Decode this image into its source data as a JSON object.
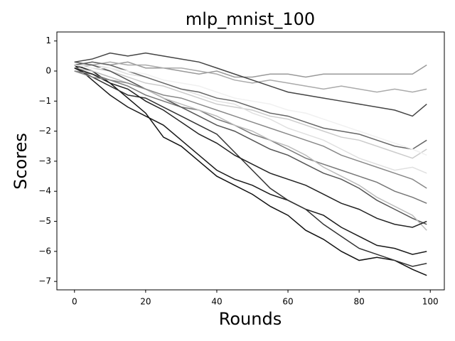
{
  "chart_data": {
    "type": "line",
    "title": "mlp_mnist_100",
    "xlabel": "Rounds",
    "ylabel": "Scores",
    "x": [
      0,
      5,
      10,
      15,
      20,
      25,
      30,
      35,
      40,
      45,
      50,
      55,
      60,
      65,
      70,
      75,
      80,
      85,
      90,
      95,
      99
    ],
    "xlim": [
      -4.95,
      103.95
    ],
    "xticks": [
      0,
      20,
      40,
      60,
      80,
      100
    ],
    "ylim": [
      -7.28,
      1.3
    ],
    "yticks": [
      {
        "value": -7,
        "label": "−7"
      },
      {
        "value": -6,
        "label": "−6"
      },
      {
        "value": -5,
        "label": "−5"
      },
      {
        "value": -4,
        "label": "−4"
      },
      {
        "value": -3,
        "label": "−3"
      },
      {
        "value": -2,
        "label": "−2"
      },
      {
        "value": -1,
        "label": "−1"
      },
      0,
      1
    ],
    "series": [
      {
        "color": "#999999",
        "values": [
          0.2,
          0.3,
          0.2,
          0.3,
          0.1,
          0.1,
          0,
          -0.1,
          0,
          -0.2,
          -0.2,
          -0.1,
          -0.1,
          -0.2,
          -0.1,
          -0.1,
          -0.1,
          -0.1,
          -0.1,
          -0.1,
          0.2
        ]
      },
      {
        "color": "#aaaaaa",
        "values": [
          0.1,
          0.2,
          0.3,
          0.2,
          0.2,
          0.1,
          0.1,
          0,
          -0.1,
          -0.3,
          -0.4,
          -0.3,
          -0.4,
          -0.5,
          -0.6,
          -0.5,
          -0.6,
          -0.7,
          -0.6,
          -0.7,
          -0.6
        ]
      },
      {
        "color": "#444444",
        "values": [
          0.3,
          0.4,
          0.6,
          0.5,
          0.6,
          0.5,
          0.4,
          0.3,
          0.1,
          -0.1,
          -0.3,
          -0.5,
          -0.7,
          -0.8,
          -0.9,
          -1,
          -1.1,
          -1.2,
          -1.3,
          -1.5,
          -1.1
        ]
      },
      {
        "color": "#1a1a1a",
        "values": [
          0.2,
          -0.3,
          -0.8,
          -1.2,
          -1.5,
          -1.8,
          -2.3,
          -2.8,
          -3.3,
          -3.6,
          -3.8,
          -4.1,
          -4.3,
          -4.6,
          -4.8,
          -5.2,
          -5.5,
          -5.8,
          -5.9,
          -6.1,
          -6.0
        ]
      },
      {
        "color": "#111111",
        "values": [
          0.2,
          0,
          -0.4,
          -0.9,
          -1.4,
          -2.2,
          -2.5,
          -3,
          -3.5,
          -3.8,
          -4.1,
          -4.5,
          -4.8,
          -5.3,
          -5.6,
          -6.0,
          -6.3,
          -6.2,
          -6.3,
          -6.6,
          -6.8
        ]
      },
      {
        "color": "#333333",
        "values": [
          0.1,
          -0.2,
          -0.5,
          -0.8,
          -0.9,
          -1.2,
          -1.5,
          -1.8,
          -2.1,
          -2.7,
          -3.3,
          -3.9,
          -4.3,
          -4.6,
          -5.1,
          -5.5,
          -5.9,
          -6.1,
          -6.3,
          -6.5,
          -6.4
        ]
      },
      {
        "color": "#cccccc",
        "values": [
          0.2,
          0.1,
          0,
          -0.2,
          -0.4,
          -0.5,
          -0.7,
          -0.9,
          -1.1,
          -1.2,
          -1.3,
          -1.5,
          -1.6,
          -1.8,
          -2.0,
          -2.2,
          -2.3,
          -2.5,
          -2.7,
          -2.9,
          -2.6
        ]
      },
      {
        "color": "#777777",
        "values": [
          0.0,
          -0.1,
          -0.3,
          -0.5,
          -0.8,
          -1,
          -1.2,
          -1.3,
          -1.6,
          -1.8,
          -2.1,
          -2.3,
          -2.6,
          -2.9,
          -3.1,
          -3.3,
          -3.5,
          -3.7,
          -4.0,
          -4.2,
          -4.4
        ]
      },
      {
        "color": "#e0e0e0",
        "values": [
          0.2,
          0.2,
          0.1,
          -0.1,
          -0.2,
          -0.4,
          -0.6,
          -0.8,
          -1.0,
          -1.1,
          -1.4,
          -1.6,
          -1.9,
          -2.1,
          -2.3,
          -2.6,
          -2.9,
          -3.1,
          -3.3,
          -3.2,
          -3.4
        ]
      },
      {
        "color": "#555555",
        "values": [
          0.3,
          0.2,
          0,
          -0.3,
          -0.6,
          -0.9,
          -1.2,
          -1.5,
          -1.8,
          -2.0,
          -2.3,
          -2.6,
          -2.8,
          -3.1,
          -3.4,
          -3.6,
          -3.9,
          -4.3,
          -4.6,
          -4.9,
          -5.1
        ]
      },
      {
        "color": "#bbbbbb",
        "values": [
          0.1,
          0,
          -0.2,
          -0.4,
          -0.6,
          -0.9,
          -1.1,
          -1.3,
          -1.5,
          -1.8,
          -2.0,
          -2.3,
          -2.5,
          -2.8,
          -3.2,
          -3.5,
          -3.8,
          -4.2,
          -4.5,
          -4.8,
          -5.3
        ]
      },
      {
        "color": "#666666",
        "values": [
          0.2,
          0.3,
          0.2,
          0,
          -0.2,
          -0.4,
          -0.6,
          -0.7,
          -0.9,
          -1.0,
          -1.2,
          -1.4,
          -1.5,
          -1.7,
          -1.9,
          -2.0,
          -2.1,
          -2.3,
          -2.5,
          -2.6,
          -2.3
        ]
      },
      {
        "color": "#222222",
        "values": [
          0.1,
          -0.1,
          -0.4,
          -0.6,
          -1.0,
          -1.3,
          -1.7,
          -2.1,
          -2.4,
          -2.8,
          -3.1,
          -3.4,
          -3.6,
          -3.8,
          -4.1,
          -4.4,
          -4.6,
          -4.9,
          -5.1,
          -5.2,
          -5.0
        ]
      },
      {
        "color": "#f0f0f0",
        "values": [
          0.2,
          0.1,
          0.1,
          0,
          -0.1,
          -0.3,
          -0.4,
          -0.5,
          -0.7,
          -0.9,
          -1.0,
          -1.1,
          -1.3,
          -1.4,
          -1.6,
          -1.8,
          -2.0,
          -2.2,
          -2.4,
          -2.6,
          -2.8
        ]
      },
      {
        "color": "#888888",
        "values": [
          0.0,
          -0.2,
          -0.3,
          -0.4,
          -0.6,
          -0.8,
          -0.9,
          -1.1,
          -1.3,
          -1.5,
          -1.7,
          -1.9,
          -2.1,
          -2.3,
          -2.5,
          -2.8,
          -3.0,
          -3.2,
          -3.4,
          -3.6,
          -3.9
        ]
      }
    ]
  }
}
